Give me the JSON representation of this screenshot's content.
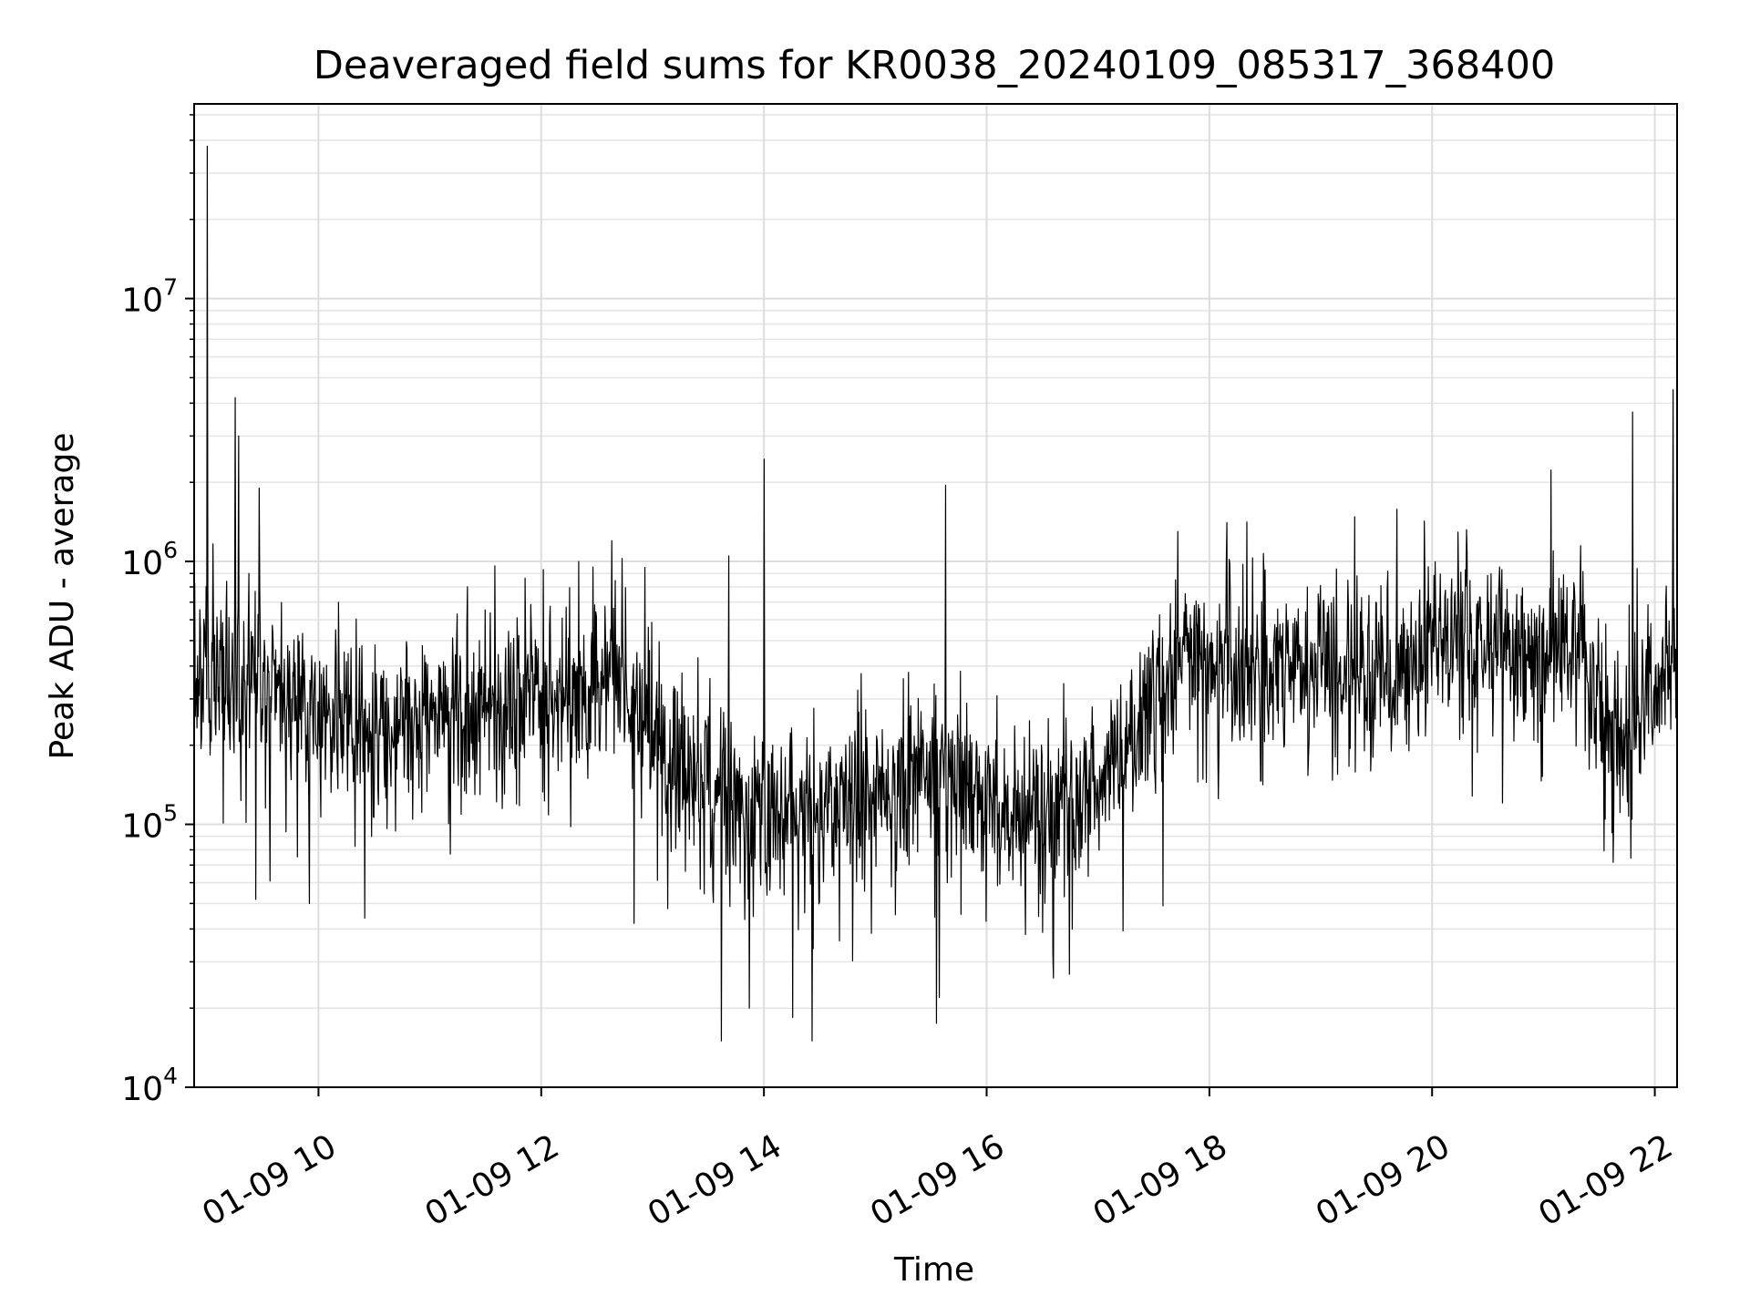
{
  "chart_data": {
    "type": "line",
    "title": "Deaveraged field sums for KR0038_20240109_085317_368400",
    "xlabel": "Time",
    "ylabel": "Peak ADU - average",
    "y_scale": "log",
    "ylim": [
      10000,
      55000000
    ],
    "xlim": [
      "2024-01-09 08:53",
      "2024-01-09 22:12"
    ],
    "grid": true,
    "line_color": "#000000",
    "x_ticks": [
      {
        "value": "2024-01-09 10:00",
        "label": "01-09 10"
      },
      {
        "value": "2024-01-09 12:00",
        "label": "01-09 12"
      },
      {
        "value": "2024-01-09 14:00",
        "label": "01-09 14"
      },
      {
        "value": "2024-01-09 16:00",
        "label": "01-09 16"
      },
      {
        "value": "2024-01-09 18:00",
        "label": "01-09 18"
      },
      {
        "value": "2024-01-09 20:00",
        "label": "01-09 20"
      },
      {
        "value": "2024-01-09 22:00",
        "label": "01-09 22"
      }
    ],
    "y_ticks": [
      {
        "value": 10000,
        "base": "10",
        "exp": "4"
      },
      {
        "value": 100000,
        "base": "10",
        "exp": "5"
      },
      {
        "value": 1000000,
        "base": "10",
        "exp": "6"
      },
      {
        "value": 10000000,
        "base": "10",
        "exp": "7"
      }
    ],
    "trend": [
      {
        "time": "2024-01-09 08:53",
        "value": 380000
      },
      {
        "time": "2024-01-09 09:30",
        "value": 340000
      },
      {
        "time": "2024-01-09 10:00",
        "value": 250000
      },
      {
        "time": "2024-01-09 10:30",
        "value": 230000
      },
      {
        "time": "2024-01-09 11:00",
        "value": 260000
      },
      {
        "time": "2024-01-09 11:30",
        "value": 290000
      },
      {
        "time": "2024-01-09 12:00",
        "value": 300000
      },
      {
        "time": "2024-01-09 12:30",
        "value": 340000
      },
      {
        "time": "2024-01-09 12:45",
        "value": 420000
      },
      {
        "time": "2024-01-09 13:00",
        "value": 200000
      },
      {
        "time": "2024-01-09 13:30",
        "value": 140000
      },
      {
        "time": "2024-01-09 14:00",
        "value": 110000
      },
      {
        "time": "2024-01-09 14:30",
        "value": 110000
      },
      {
        "time": "2024-01-09 15:00",
        "value": 130000
      },
      {
        "time": "2024-01-09 15:30",
        "value": 170000
      },
      {
        "time": "2024-01-09 16:00",
        "value": 120000
      },
      {
        "time": "2024-01-09 16:30",
        "value": 110000
      },
      {
        "time": "2024-01-09 17:00",
        "value": 130000
      },
      {
        "time": "2024-01-09 17:20",
        "value": 220000
      },
      {
        "time": "2024-01-09 17:40",
        "value": 420000
      },
      {
        "time": "2024-01-09 18:00",
        "value": 430000
      },
      {
        "time": "2024-01-09 18:30",
        "value": 420000
      },
      {
        "time": "2024-01-09 19:00",
        "value": 410000
      },
      {
        "time": "2024-01-09 19:30",
        "value": 360000
      },
      {
        "time": "2024-01-09 20:00",
        "value": 500000
      },
      {
        "time": "2024-01-09 20:30",
        "value": 480000
      },
      {
        "time": "2024-01-09 21:00",
        "value": 460000
      },
      {
        "time": "2024-01-09 21:20",
        "value": 500000
      },
      {
        "time": "2024-01-09 21:40",
        "value": 200000
      },
      {
        "time": "2024-01-09 22:00",
        "value": 350000
      },
      {
        "time": "2024-01-09 22:12",
        "value": 480000
      }
    ],
    "spikes": [
      {
        "time": "2024-01-09 09:00",
        "value": 38000000
      },
      {
        "time": "2024-01-09 09:15",
        "value": 4200000
      },
      {
        "time": "2024-01-09 09:17",
        "value": 3000000
      },
      {
        "time": "2024-01-09 09:28",
        "value": 1900000
      },
      {
        "time": "2024-01-09 12:38",
        "value": 1200000
      },
      {
        "time": "2024-01-09 12:56",
        "value": 950000
      },
      {
        "time": "2024-01-09 13:41",
        "value": 1050000
      },
      {
        "time": "2024-01-09 14:00",
        "value": 2450000
      },
      {
        "time": "2024-01-09 15:38",
        "value": 1950000
      },
      {
        "time": "2024-01-09 17:43",
        "value": 1300000
      },
      {
        "time": "2024-01-09 21:48",
        "value": 3700000
      },
      {
        "time": "2024-01-09 22:10",
        "value": 4500000
      }
    ],
    "dips": [
      {
        "time": "2024-01-09 13:37",
        "value": 15000
      },
      {
        "time": "2024-01-09 14:26",
        "value": 15000
      },
      {
        "time": "2024-01-09 13:52",
        "value": 20000
      },
      {
        "time": "2024-01-09 15:33",
        "value": 17500
      },
      {
        "time": "2024-01-09 10:25",
        "value": 44000
      },
      {
        "time": "2024-01-09 09:55",
        "value": 50000
      },
      {
        "time": "2024-01-09 12:50",
        "value": 42000
      },
      {
        "time": "2024-01-09 16:36",
        "value": 26000
      },
      {
        "time": "2024-01-09 17:35",
        "value": 49000
      }
    ]
  }
}
